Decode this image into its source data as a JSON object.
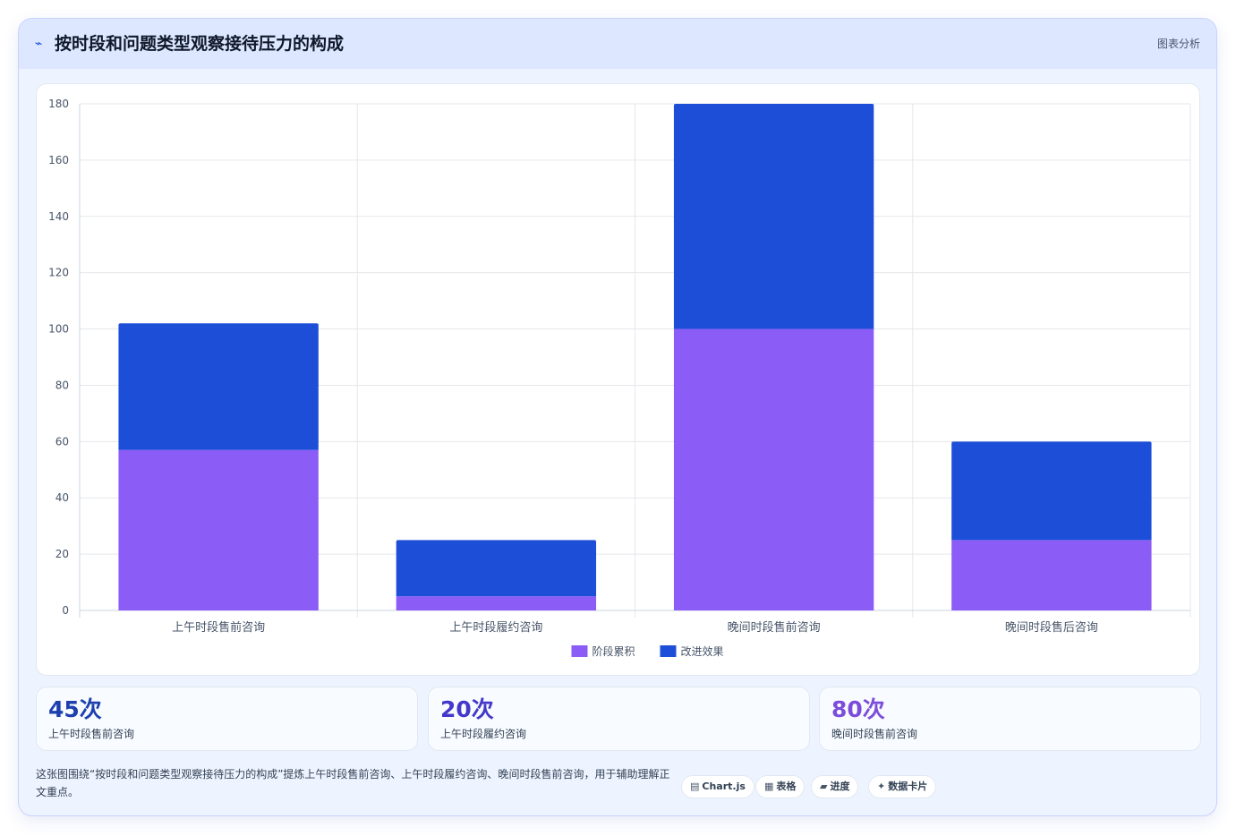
{
  "header": {
    "title_icon": "trend-icon",
    "title": "按时段和问题类型观察接待压力的构成",
    "tag": "图表分析"
  },
  "chart_data": {
    "type": "bar",
    "stacked": true,
    "categories": [
      "上午时段售前咨询",
      "上午时段履约咨询",
      "晚间时段售前咨询",
      "晚间时段售后咨询"
    ],
    "series": [
      {
        "name": "阶段累积",
        "values": [
          57,
          5,
          100,
          25
        ],
        "color": "#8b5cf6"
      },
      {
        "name": "改进效果",
        "values": [
          45,
          20,
          80,
          35
        ],
        "color": "#1d4ed8"
      }
    ],
    "ylim": [
      0,
      180
    ],
    "yticks": [
      0,
      20,
      40,
      60,
      80,
      100,
      120,
      140,
      160,
      180
    ],
    "grid": true,
    "legend_position": "bottom"
  },
  "stats": [
    {
      "value": "45次",
      "label": "上午时段售前咨询",
      "color": "#1e40af"
    },
    {
      "value": "20次",
      "label": "上午时段履约咨询",
      "color": "#4338ca"
    },
    {
      "value": "80次",
      "label": "晚间时段售前咨询",
      "color": "#7c4ddb"
    }
  ],
  "description": "这张图围绕“按时段和问题类型观察接待压力的构成”提炼上午时段售前咨询、上午时段履约咨询、晚间时段售前咨询，用于辅助理解正文重点。",
  "pills": [
    {
      "icon": "▤",
      "icon_name": "chart-icon",
      "label": "Chart.js"
    },
    {
      "icon": "▦",
      "icon_name": "table-icon",
      "label": "表格"
    },
    {
      "icon": "▰",
      "icon_name": "progress-icon",
      "label": "进度"
    },
    {
      "icon": "✦",
      "icon_name": "sparkle-icon",
      "label": "数据卡片"
    }
  ]
}
